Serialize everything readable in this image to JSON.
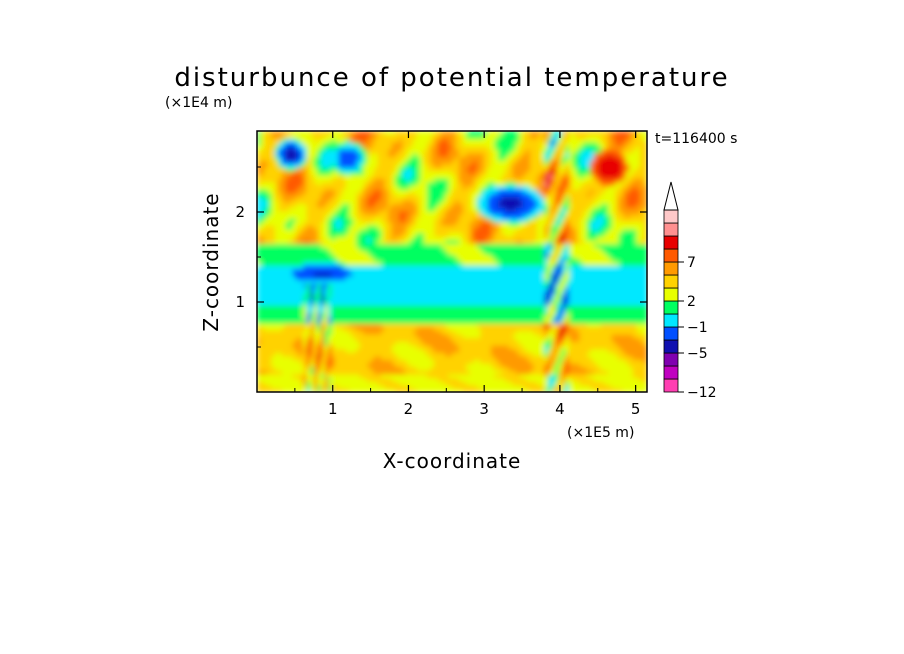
{
  "chart_data": {
    "type": "heatmap",
    "title": "disturbunce of potential temperature",
    "time_label": "t=116400 s",
    "xlabel": "X-coordinate",
    "ylabel": "Z-coordinate",
    "x_unit": "(×1E5 m)",
    "y_unit": "(×1E4 m)",
    "xlim": [
      0,
      5.15
    ],
    "ylim": [
      0,
      2.9
    ],
    "x_ticks": [
      {
        "value": 1,
        "label": "1"
      },
      {
        "value": 2,
        "label": "2"
      },
      {
        "value": 3,
        "label": "3"
      },
      {
        "value": 4,
        "label": "4"
      },
      {
        "value": 5,
        "label": "5"
      }
    ],
    "y_ticks": [
      {
        "value": 1,
        "label": "1"
      },
      {
        "value": 2,
        "label": "2"
      }
    ],
    "colorbar": {
      "colors": [
        "#ff3fb2",
        "#c000c0",
        "#8000b0",
        "#1010b0",
        "#0050ff",
        "#00e8ff",
        "#00ff60",
        "#e8ff00",
        "#ffd200",
        "#ff9a00",
        "#ff5a00",
        "#e80000",
        "#ff9090",
        "#ffc8c8"
      ],
      "labels": [
        {
          "value": "−12",
          "level": 0
        },
        {
          "value": "−5",
          "level": 3
        },
        {
          "value": "−1",
          "level": 5
        },
        {
          "value": "2",
          "level": 7
        },
        {
          "value": "7",
          "level": 10
        }
      ],
      "extend_top": true
    },
    "field_bands": [
      {
        "z_range": [
          0.0,
          0.2
        ],
        "dominant": "yellow"
      },
      {
        "z_range": [
          0.2,
          0.75
        ],
        "dominant": "orange/yellow"
      },
      {
        "z_range": [
          0.75,
          0.95
        ],
        "dominant": "green"
      },
      {
        "z_range": [
          0.95,
          1.4
        ],
        "dominant": "cyan"
      },
      {
        "z_range": [
          1.4,
          1.65
        ],
        "dominant": "green"
      },
      {
        "z_range": [
          1.65,
          2.9
        ],
        "dominant": "mixed orange/yellow/green with blue eddies"
      }
    ]
  }
}
